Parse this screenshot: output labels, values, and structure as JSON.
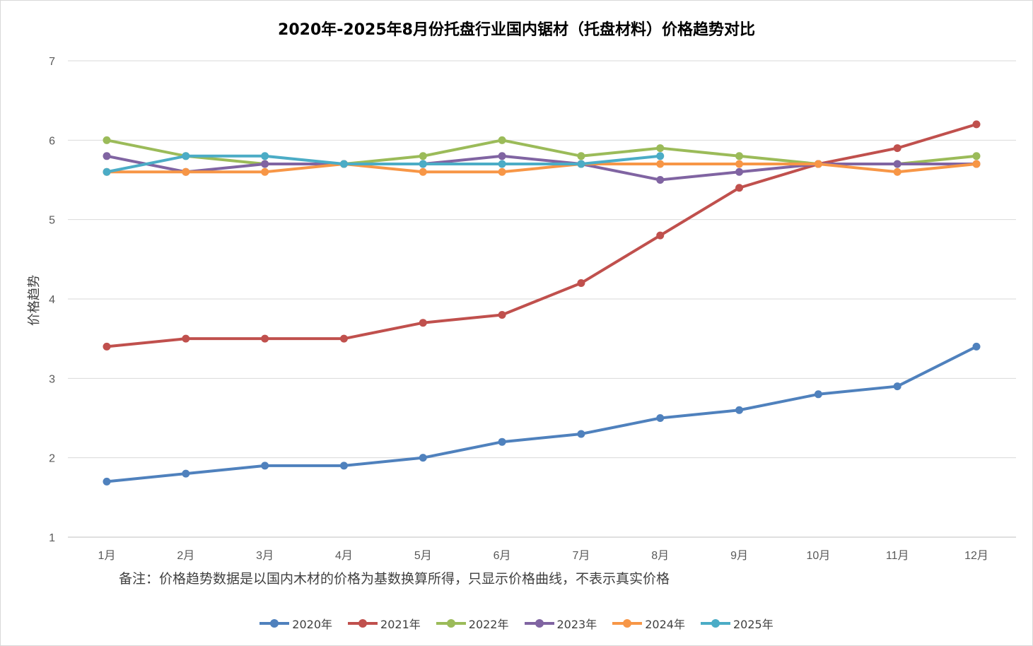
{
  "chart_data": {
    "type": "line",
    "title": "2020年-2025年8月份托盘行业国内锯材（托盘材料）价格趋势对比",
    "xlabel": "",
    "ylabel": "价格趋势",
    "note": "备注：价格趋势数据是以国内木材的价格为基数换算所得，只显示价格曲线，不表示真实价格",
    "ylim": [
      1,
      7
    ],
    "yticks": [
      "1",
      "2",
      "3",
      "4",
      "5",
      "6",
      "7"
    ],
    "grid": true,
    "legend_position": "bottom",
    "categories": [
      "1月",
      "2月",
      "3月",
      "4月",
      "5月",
      "6月",
      "7月",
      "8月",
      "9月",
      "10月",
      "11月",
      "12月"
    ],
    "series": [
      {
        "name": "2020年",
        "color": "#4f81bd",
        "values": [
          1.7,
          1.8,
          1.9,
          1.9,
          2.0,
          2.2,
          2.3,
          2.5,
          2.6,
          2.8,
          2.9,
          3.4
        ]
      },
      {
        "name": "2021年",
        "color": "#c0504d",
        "values": [
          3.4,
          3.5,
          3.5,
          3.5,
          3.7,
          3.8,
          4.2,
          4.8,
          5.4,
          5.7,
          5.9,
          6.2
        ]
      },
      {
        "name": "2022年",
        "color": "#9bbb59",
        "values": [
          6.0,
          5.8,
          5.7,
          5.7,
          5.8,
          6.0,
          5.8,
          5.9,
          5.8,
          5.7,
          5.7,
          5.8
        ]
      },
      {
        "name": "2023年",
        "color": "#8064a2",
        "values": [
          5.8,
          5.6,
          5.7,
          5.7,
          5.7,
          5.8,
          5.7,
          5.5,
          5.6,
          5.7,
          5.7,
          5.7
        ]
      },
      {
        "name": "2024年",
        "color": "#f79646",
        "values": [
          5.6,
          5.6,
          5.6,
          5.7,
          5.6,
          5.6,
          5.7,
          5.7,
          5.7,
          5.7,
          5.6,
          5.7
        ]
      },
      {
        "name": "2025年",
        "color": "#4bacc6",
        "values": [
          5.6,
          5.8,
          5.8,
          5.7,
          5.7,
          5.7,
          5.7,
          5.8,
          null,
          null,
          null,
          null
        ]
      }
    ]
  }
}
